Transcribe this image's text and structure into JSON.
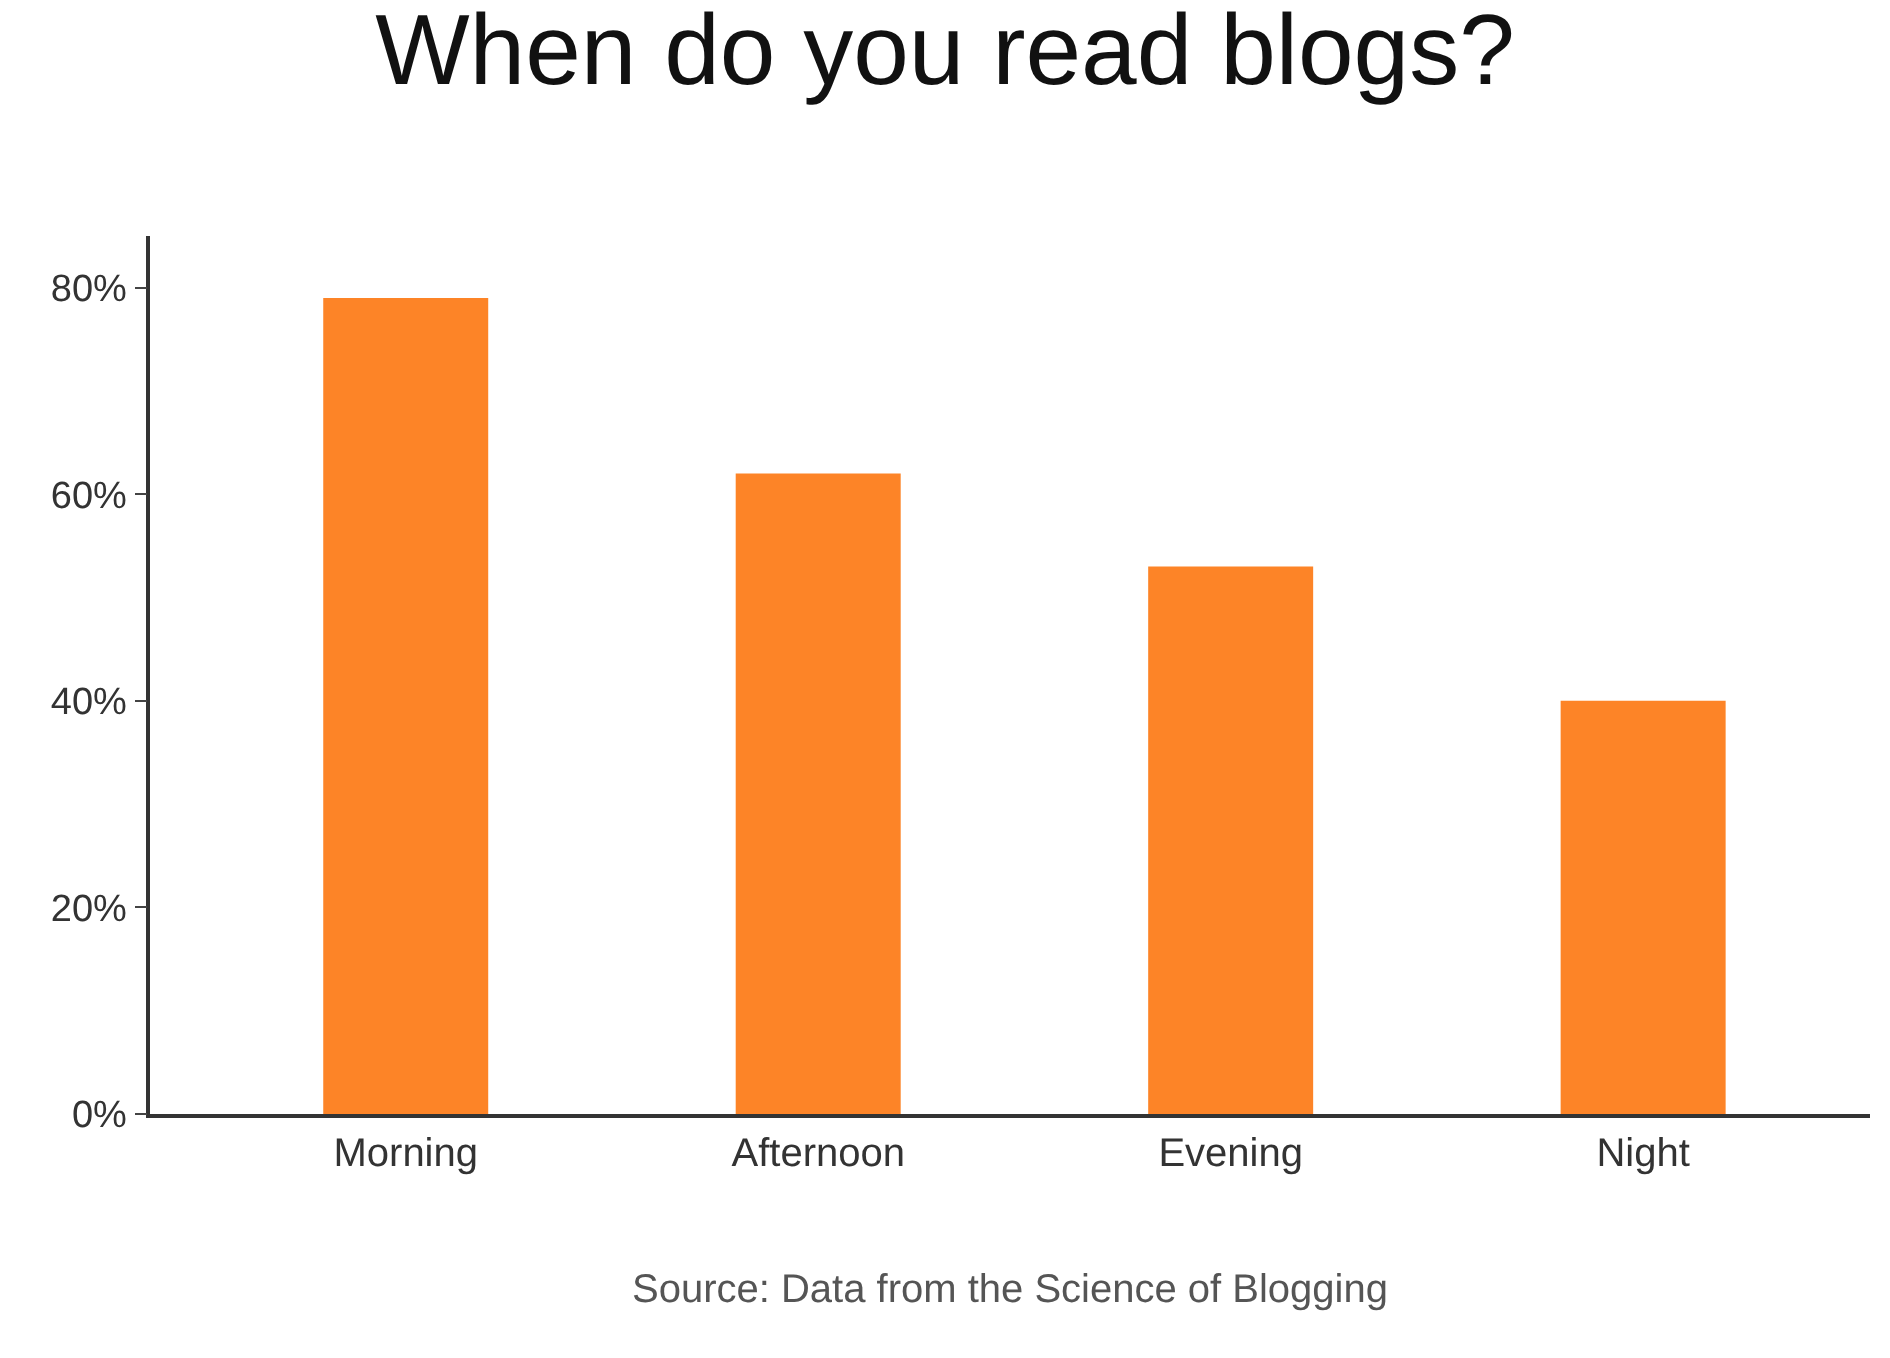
{
  "chart_data": {
    "type": "bar",
    "title": "When do you read blogs?",
    "categories": [
      "Morning",
      "Afternoon",
      "Evening",
      "Night"
    ],
    "values": [
      79,
      62,
      53,
      40
    ],
    "color": "#fd8427",
    "ylim": [
      0,
      85
    ],
    "yticks": [
      {
        "value": 0,
        "label": "0%"
      },
      {
        "value": 20,
        "label": "20%"
      },
      {
        "value": 40,
        "label": "40%"
      },
      {
        "value": 60,
        "label": "60%"
      },
      {
        "value": 80,
        "label": "80%"
      }
    ],
    "grid": false,
    "legend": false,
    "annotations": [
      "Source: Data from the Science of Blogging"
    ]
  }
}
